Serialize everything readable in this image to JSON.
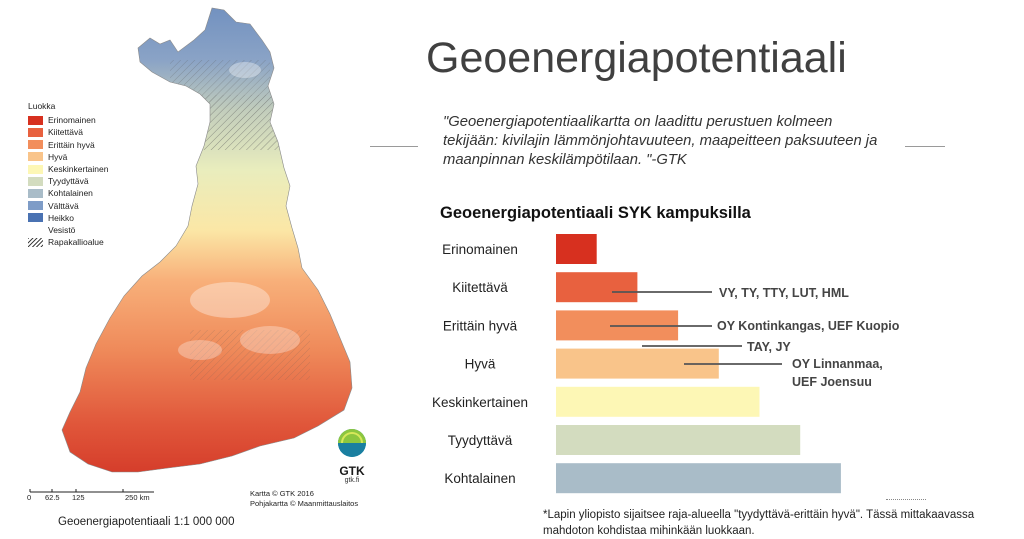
{
  "slide": {
    "title": "Geoenergiapotentiaali",
    "quote": "\"Geoenergiapotentiaalikartta on laadittu perustuen kolmeen tekijään: kivilajin lämmönjohtavuuteen, maapeitteen paksuuteen ja maanpinnan keskilämpötilaan. \"-GTK",
    "footnote": "*Lapin yliopisto sijaitsee raja-alueella \"tyydyttävä-erittäin hyvä\". Tässä mittakaavassa mahdoton kohdistaa mihinkään luokkaan."
  },
  "map": {
    "legend_title": "Luokka",
    "legend": [
      {
        "label": "Erinomainen",
        "color": "#d7301f"
      },
      {
        "label": "Kiitettävä",
        "color": "#e8613f"
      },
      {
        "label": "Erittäin hyvä",
        "color": "#f28e5c"
      },
      {
        "label": "Hyvä",
        "color": "#f9c48a"
      },
      {
        "label": "Keskinkertainen",
        "color": "#fdf7b5"
      },
      {
        "label": "Tyydyttävä",
        "color": "#d3dcbf"
      },
      {
        "label": "Kohtalainen",
        "color": "#a9bcc8"
      },
      {
        "label": "Välttävä",
        "color": "#7e9cc7"
      },
      {
        "label": "Heikko",
        "color": "#4a72b2"
      },
      {
        "label": "Vesistö",
        "color": ""
      },
      {
        "label": "Rapakallioalue",
        "color": "hatch"
      }
    ],
    "scale_labels": [
      "0",
      "62.5",
      "125",
      "250 km"
    ],
    "credit_1": "Kartta © GTK 2016",
    "credit_2": "Pohjakartta © Maanmittauslaitos",
    "logo_text": "GTK",
    "logo_sub": "gtk.fi",
    "caption": "Geoenergiapotentiaali 1:1 000 000"
  },
  "chart_data": {
    "type": "bar",
    "orientation": "horizontal",
    "title": "Geoenergiapotentiaali SYK kampuksilla",
    "categories": [
      "Erinomainen",
      "Kiitettävä",
      "Erittäin hyvä",
      "Hyvä",
      "Keskinkertainen",
      "Tyydyttävä",
      "Kohtalainen"
    ],
    "values": [
      1,
      2,
      3,
      4,
      5,
      6,
      7
    ],
    "colors": [
      "#d7301f",
      "#e8613f",
      "#f28e5c",
      "#f9c48a",
      "#fdf7b5",
      "#d3dcbf",
      "#a9bcc8"
    ],
    "annotations": [
      {
        "text": "VY, TY, TTY, LUT, HML",
        "category": "Kiitettävä"
      },
      {
        "text": "OY Kontinkangas, UEF Kuopio",
        "category": "Erittäin hyvä"
      },
      {
        "text": "TAY, JY",
        "category": "Erittäin hyvä / Hyvä"
      },
      {
        "text": "OY Linnanmaa, UEF Joensuu",
        "category": "Hyvä"
      }
    ],
    "grid": false,
    "legend": "none"
  }
}
